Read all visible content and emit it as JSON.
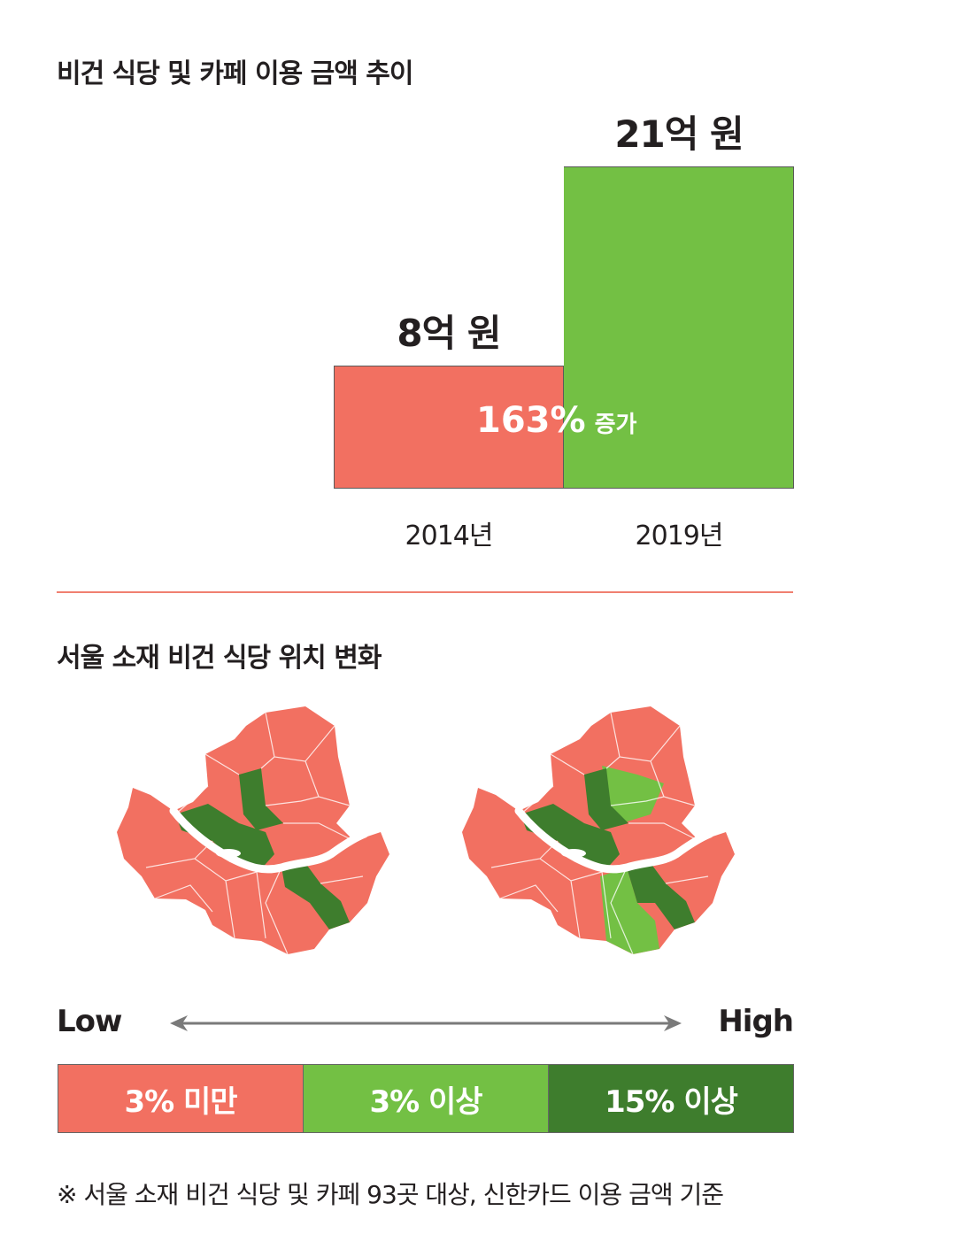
{
  "colors": {
    "low": "#f27061",
    "mid": "#73c044",
    "high": "#3e7d2d"
  },
  "title_top": "비건 식당 및 카페 이용 금액 추이",
  "chart_data": {
    "type": "bar",
    "title": "비건 식당 및 카페 이용 금액 추이",
    "categories": [
      "2014년",
      "2019년"
    ],
    "values": [
      8,
      21
    ],
    "value_labels": [
      "8억 원",
      "21억 원"
    ],
    "unit": "억 원",
    "ylim": [
      0,
      21
    ],
    "bar_colors": [
      "#f27061",
      "#73c044"
    ],
    "annotation": {
      "number": "163%",
      "word": "증가"
    }
  },
  "title_map": "서울 소재 비건 식당 위치 변화",
  "scale": {
    "low": "Low",
    "high": "High"
  },
  "legend": [
    {
      "label": "3% 미만",
      "color": "#f27061"
    },
    {
      "label": "3% 이상",
      "color": "#73c044"
    },
    {
      "label": "15% 이상",
      "color": "#3e7d2d"
    }
  ],
  "footnote": "※ 서울 소재 비건 식당 및 카페 93곳 대상, 신한카드 이용 금액 기준"
}
